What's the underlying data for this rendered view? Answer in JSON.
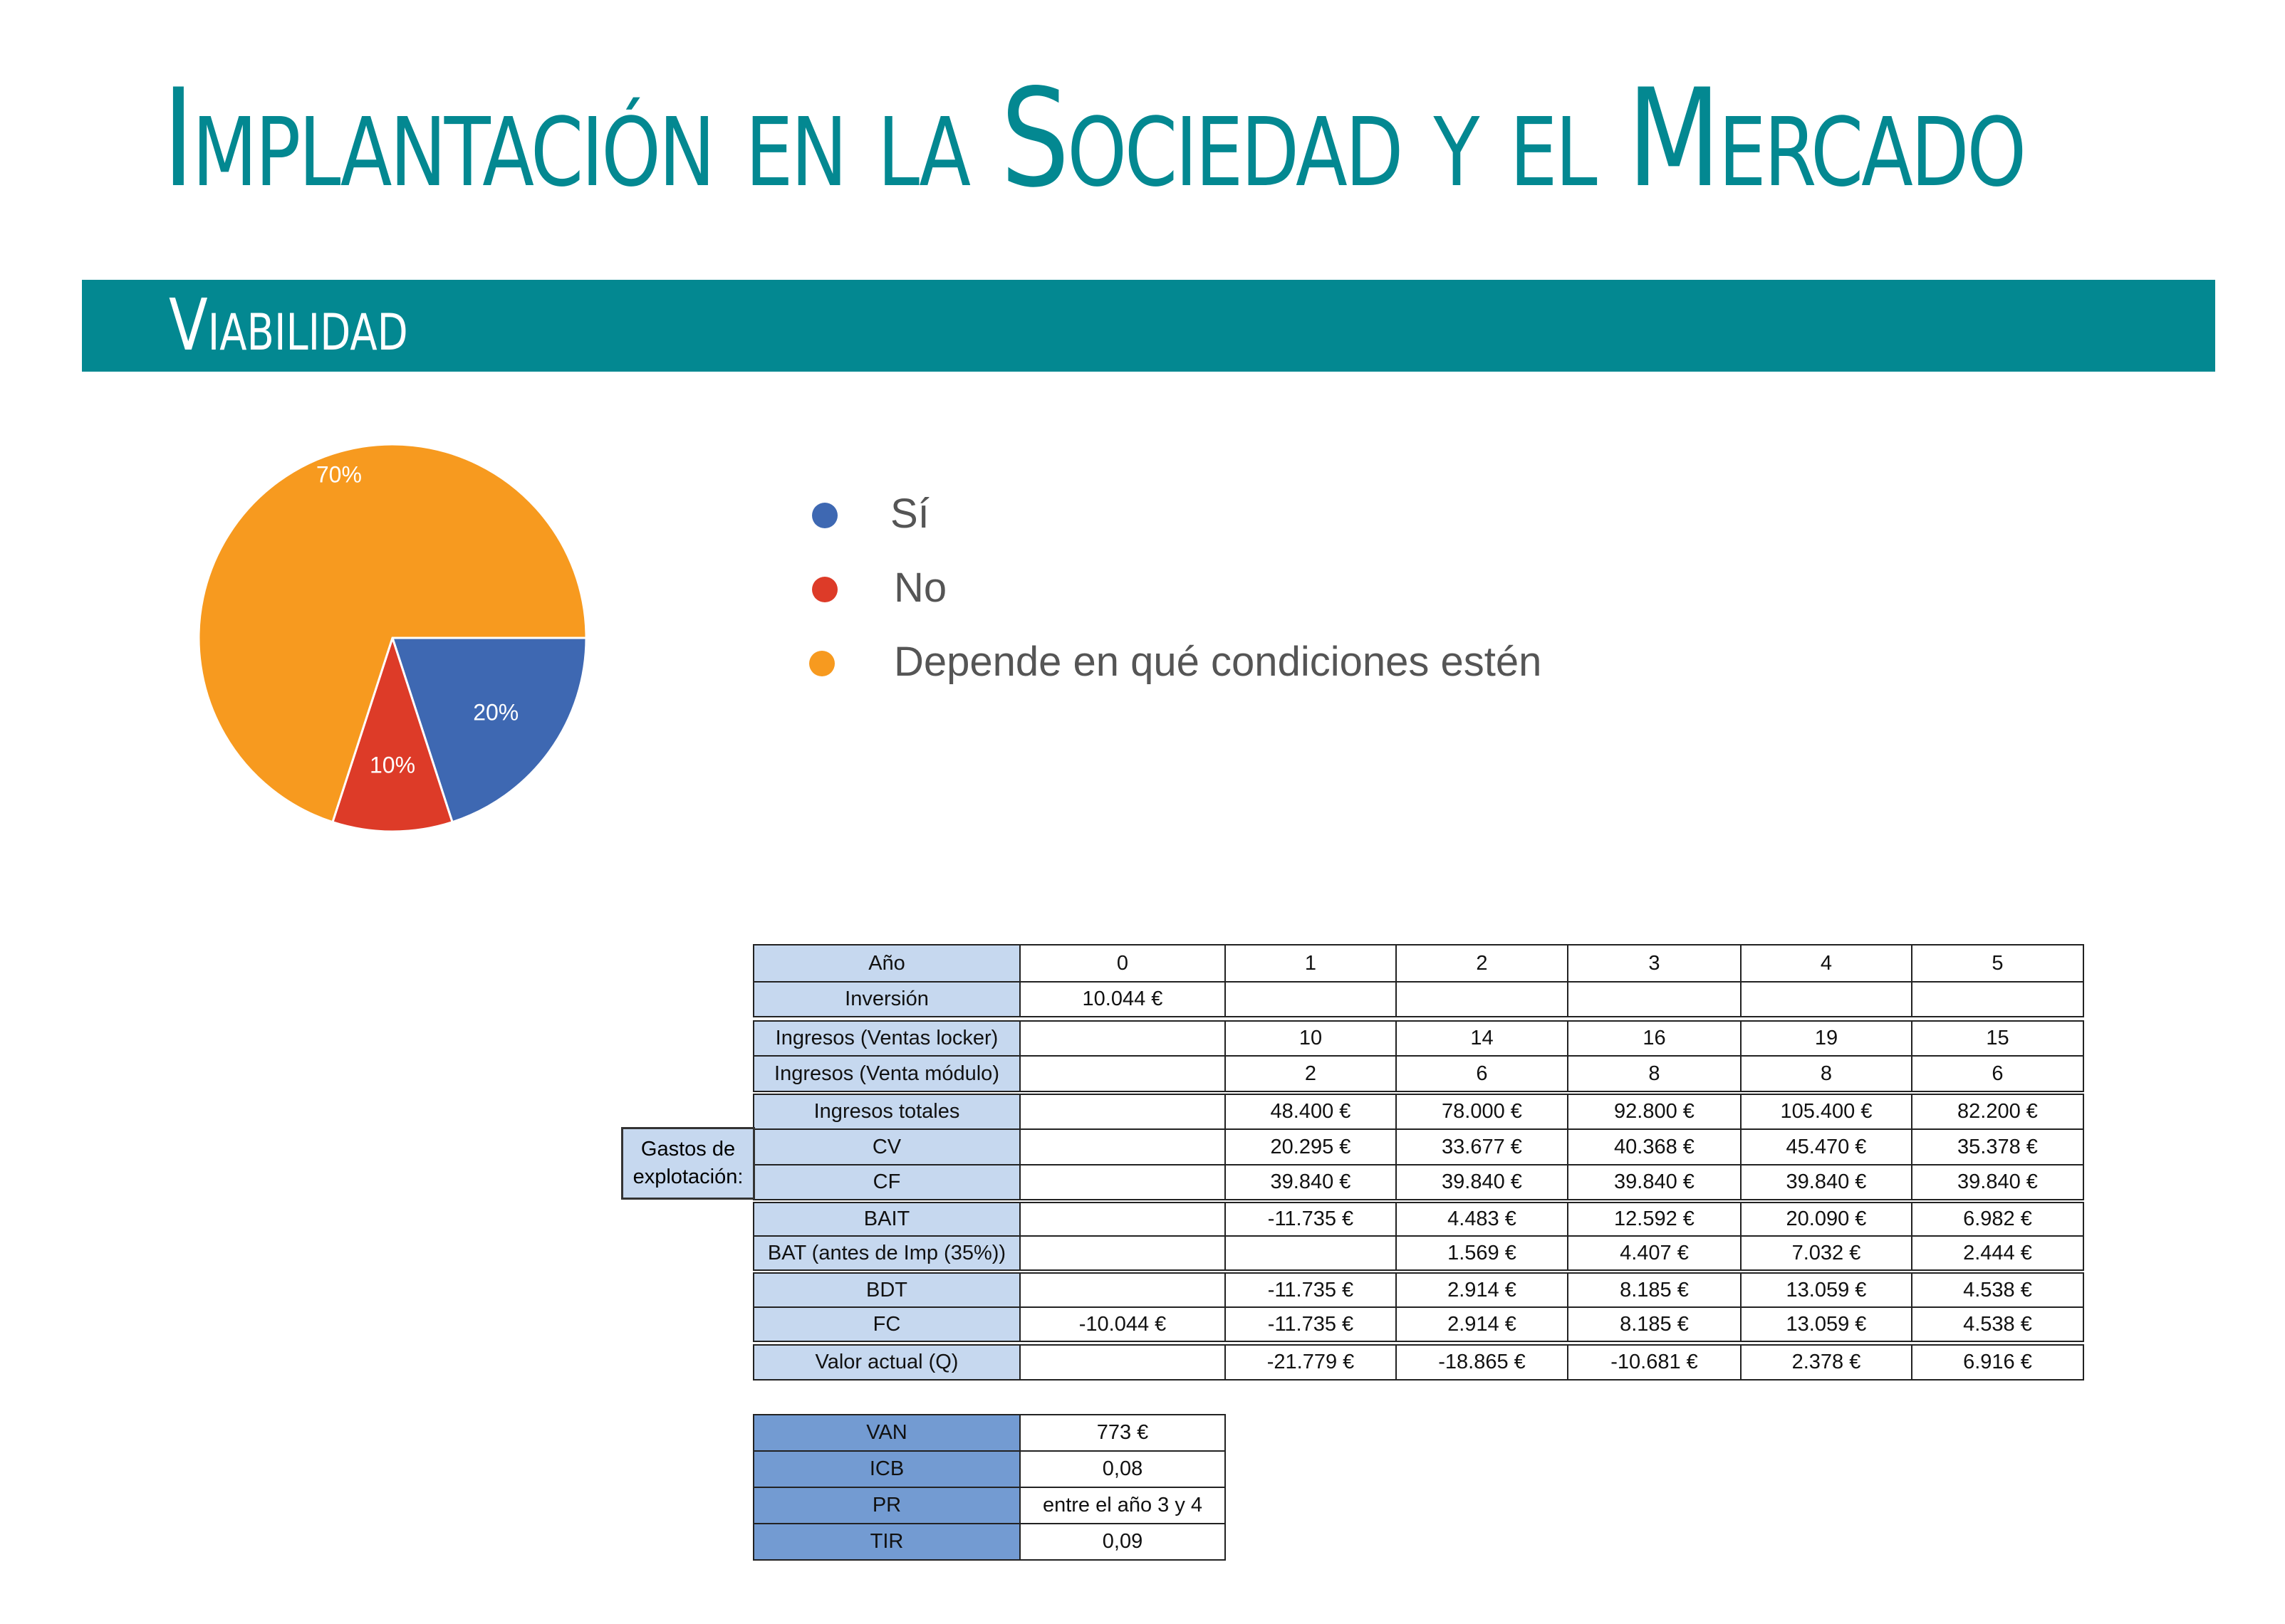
{
  "header": {
    "title": "Implantación en la Sociedad y el Mercado",
    "section": "Viabilidad"
  },
  "colors": {
    "brand": "#038891",
    "yes": "#3e68b2",
    "no": "#dd3b28",
    "depends": "#f79a1f",
    "row_header": "#c6d8ef",
    "summary_header": "#739bd2"
  },
  "chart_data": {
    "type": "pie",
    "categories": [
      "Sí",
      "No",
      "Depende en qué condiciones estén"
    ],
    "values": [
      20,
      10,
      70
    ],
    "labels": [
      "20%",
      "10%",
      "70%"
    ],
    "colors": [
      "#3e68b2",
      "#dd3b28",
      "#f79a1f"
    ],
    "legend": "right"
  },
  "table": {
    "columns": [
      "Año",
      "0",
      "1",
      "2",
      "3",
      "4",
      "5"
    ],
    "rows": [
      [
        "Inversión",
        "10.044 €",
        "",
        "",
        "",
        "",
        ""
      ],
      [
        "Ingresos (Ventas locker)",
        "",
        "10",
        "14",
        "16",
        "19",
        "15"
      ],
      [
        "Ingresos (Venta módulo)",
        "",
        "2",
        "6",
        "8",
        "8",
        "6"
      ],
      [
        "Ingresos totales",
        "",
        "48.400 €",
        "78.000 €",
        "92.800 €",
        "105.400 €",
        "82.200 €"
      ],
      [
        "CV",
        "",
        "20.295 €",
        "33.677 €",
        "40.368 €",
        "45.470 €",
        "35.378 €"
      ],
      [
        "CF",
        "",
        "39.840 €",
        "39.840 €",
        "39.840 €",
        "39.840 €",
        "39.840 €"
      ],
      [
        "BAIT",
        "",
        "-11.735 €",
        "4.483 €",
        "12.592 €",
        "20.090 €",
        "6.982 €"
      ],
      [
        "BAT (antes de Imp (35%))",
        "",
        "",
        "1.569 €",
        "4.407 €",
        "7.032 €",
        "2.444 €"
      ],
      [
        "BDT",
        "",
        "-11.735 €",
        "2.914 €",
        "8.185 €",
        "13.059 €",
        "4.538 €"
      ],
      [
        "FC",
        "-10.044 €",
        "-11.735 €",
        "2.914 €",
        "8.185 €",
        "13.059 €",
        "4.538 €"
      ],
      [
        "Valor actual (Q)",
        "",
        "-21.779 €",
        "-18.865 €",
        "-10.681 €",
        "2.378 €",
        "6.916 €"
      ]
    ],
    "group_label": "Gastos de explotación:"
  },
  "summary": [
    [
      "VAN",
      "773 €"
    ],
    [
      "ICB",
      "0,08"
    ],
    [
      "PR",
      "entre el año 3 y 4"
    ],
    [
      "TIR",
      "0,09"
    ]
  ]
}
